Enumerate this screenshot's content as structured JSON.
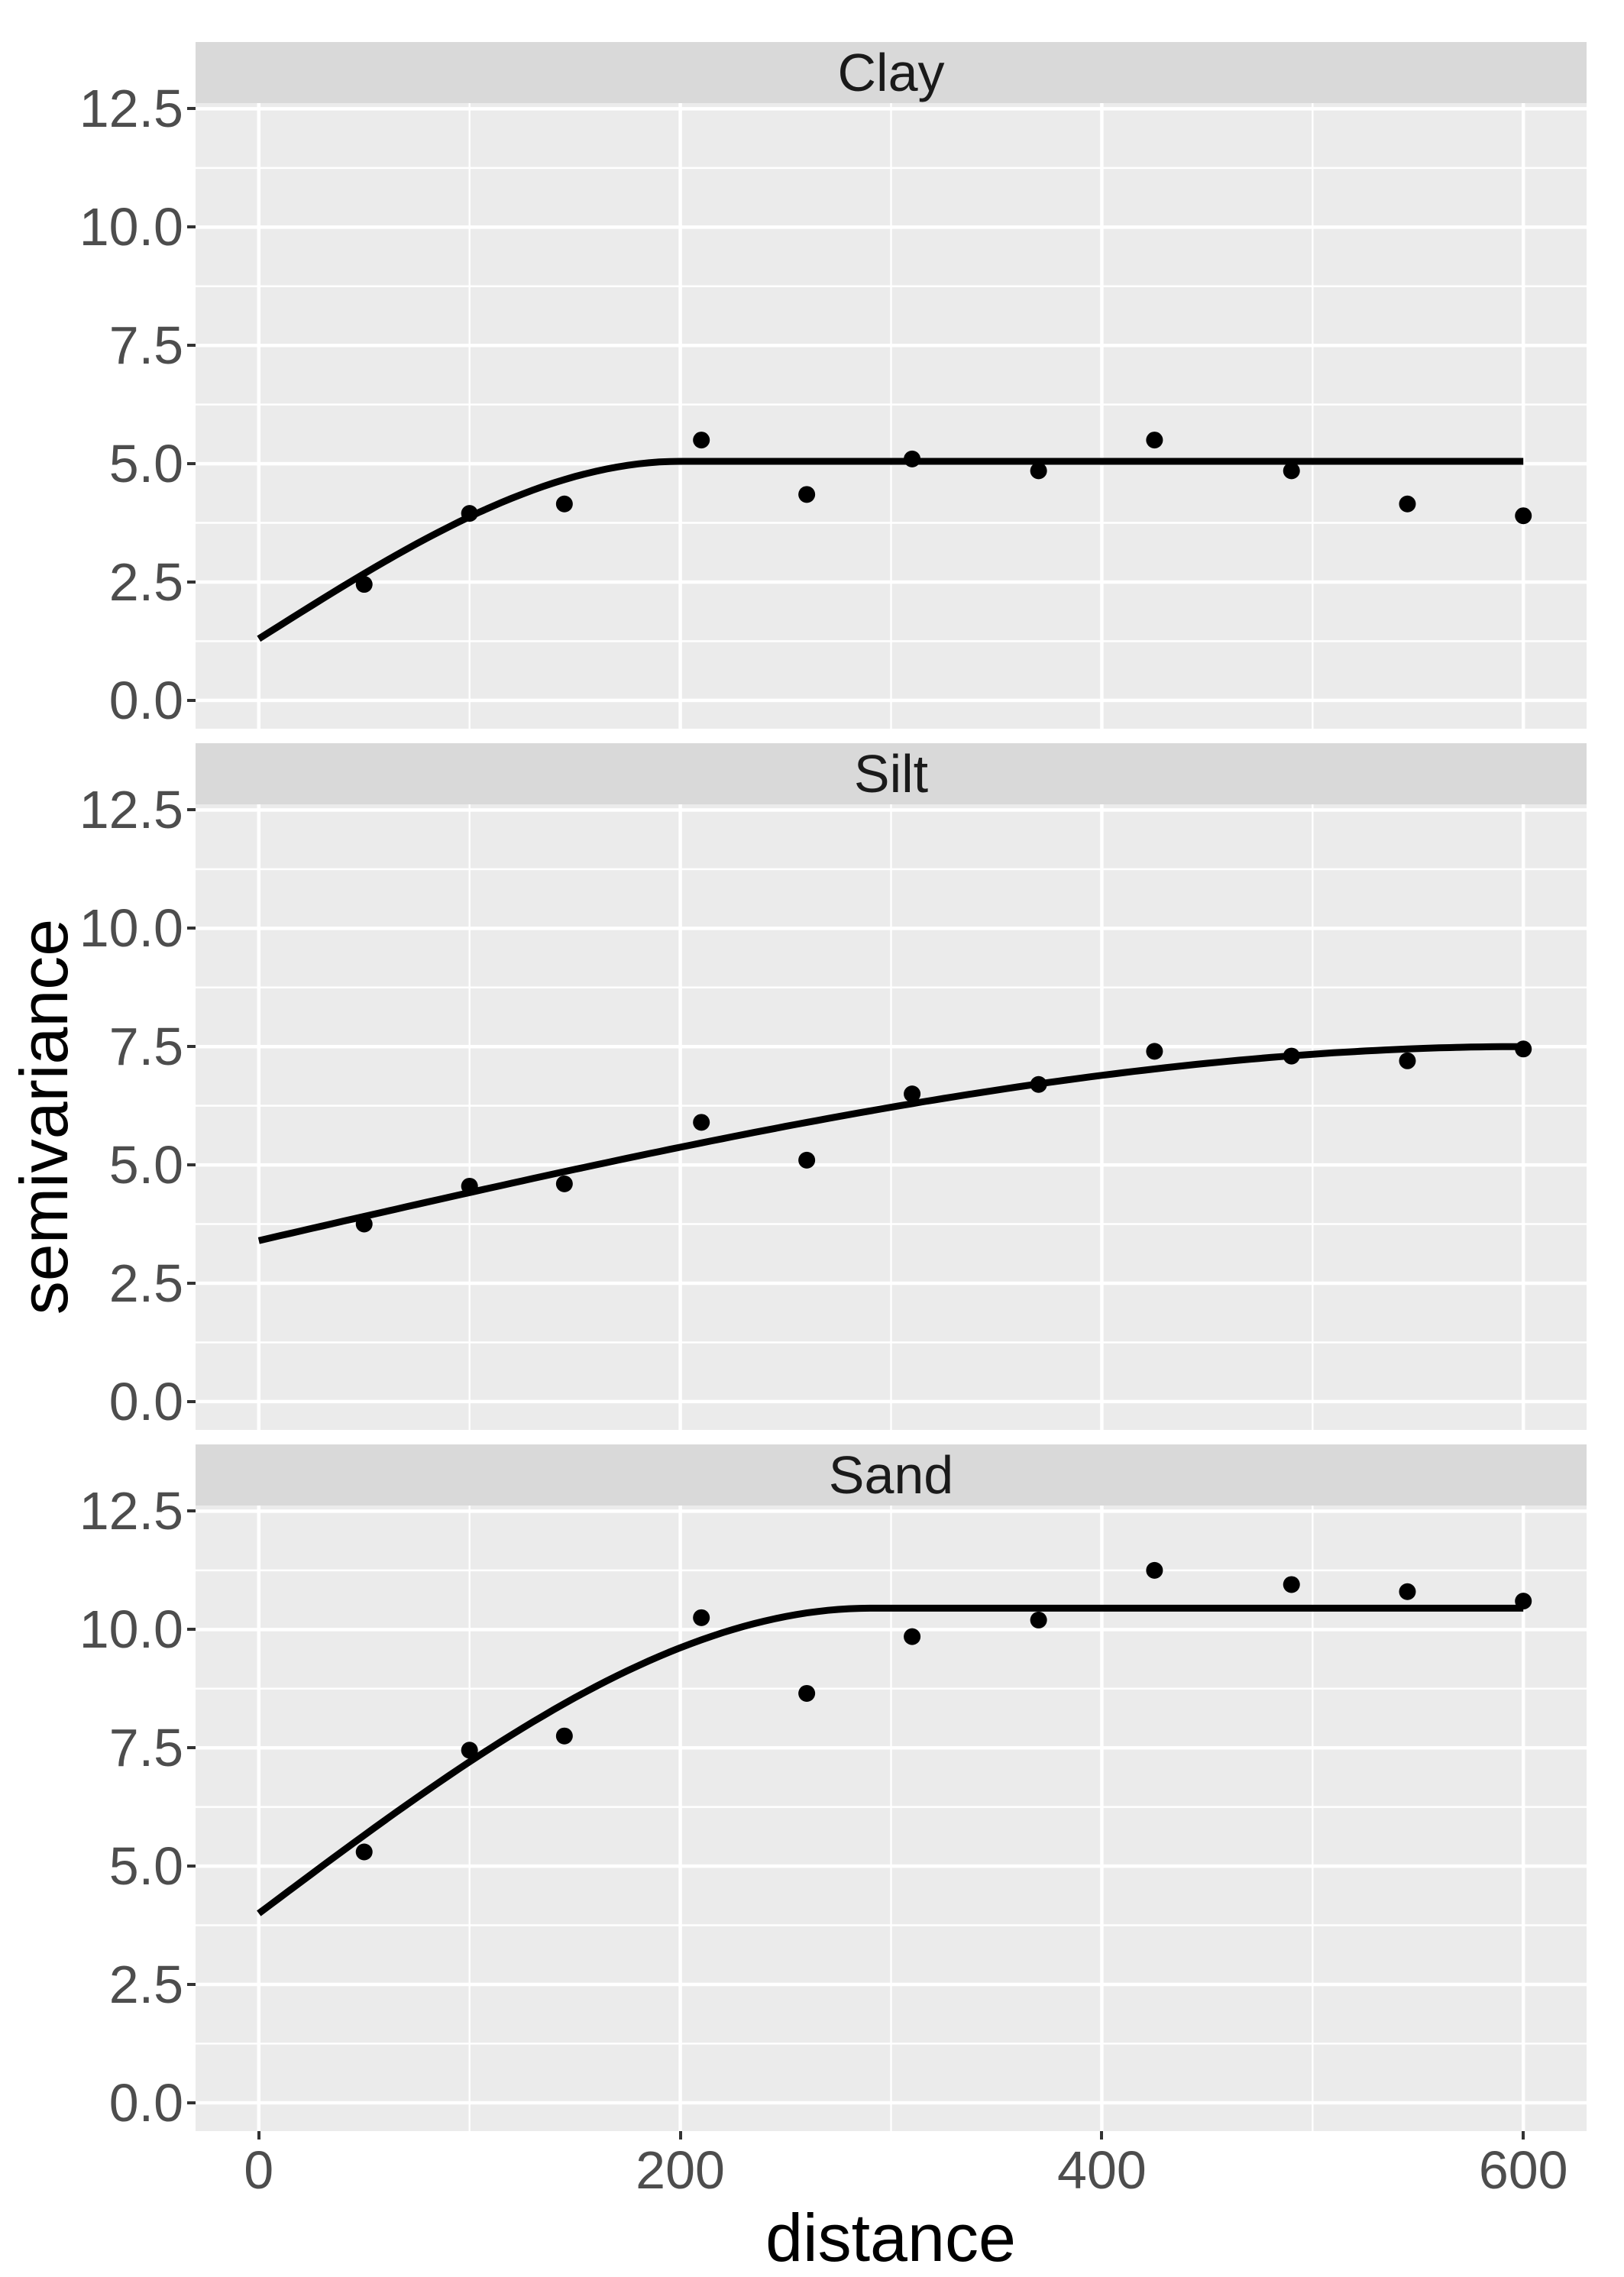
{
  "figure": {
    "x_axis_title": "distance",
    "y_axis_title": "semivariance"
  },
  "chart_data": {
    "type": "scatter",
    "title": "",
    "xlabel": "distance",
    "ylabel": "semivariance",
    "facet_labels": [
      "Clay",
      "Silt",
      "Sand"
    ],
    "x": {
      "ticks": [
        0,
        200,
        400,
        600
      ],
      "tick_labels": [
        "0",
        "200",
        "400",
        "600"
      ],
      "minor_ticks": [
        100,
        300,
        500
      ],
      "lim": [
        -30,
        630
      ]
    },
    "y": {
      "ticks": [
        0,
        2.5,
        5,
        7.5,
        10,
        12.5
      ],
      "tick_labels": [
        "0.0",
        "2.5",
        "5.0",
        "7.5",
        "10.0",
        "12.5"
      ],
      "minor_ticks": [
        1.25,
        3.75,
        6.25,
        8.75,
        11.25
      ],
      "lim": [
        -0.6,
        12.62
      ]
    },
    "grid": true,
    "legend": "none",
    "facets": [
      {
        "label": "Clay",
        "points": [
          [
            50,
            2.45
          ],
          [
            100,
            3.95
          ],
          [
            145,
            4.15
          ],
          [
            210,
            5.5
          ],
          [
            260,
            4.35
          ],
          [
            310,
            5.1
          ],
          [
            370,
            4.85
          ],
          [
            425,
            5.5
          ],
          [
            490,
            4.85
          ],
          [
            545,
            4.15
          ],
          [
            600,
            3.9
          ]
        ],
        "model": {
          "type": "spherical",
          "nugget": 1.3,
          "psill": 3.75,
          "range": 200,
          "sill": 5.05
        }
      },
      {
        "label": "Silt",
        "points": [
          [
            50,
            3.75
          ],
          [
            100,
            4.55
          ],
          [
            145,
            4.6
          ],
          [
            210,
            5.9
          ],
          [
            260,
            5.1
          ],
          [
            310,
            6.5
          ],
          [
            370,
            6.7
          ],
          [
            425,
            7.4
          ],
          [
            490,
            7.3
          ],
          [
            545,
            7.2
          ],
          [
            600,
            7.45
          ]
        ],
        "model": {
          "type": "spherical",
          "nugget": 3.4,
          "psill": 4.1,
          "range": 600,
          "sill": 7.5
        }
      },
      {
        "label": "Sand",
        "points": [
          [
            50,
            5.3
          ],
          [
            100,
            7.45
          ],
          [
            145,
            7.75
          ],
          [
            210,
            10.25
          ],
          [
            260,
            8.65
          ],
          [
            310,
            9.85
          ],
          [
            370,
            10.2
          ],
          [
            425,
            11.25
          ],
          [
            490,
            10.95
          ],
          [
            545,
            10.8
          ],
          [
            600,
            10.6
          ]
        ],
        "model": {
          "type": "spherical",
          "nugget": 4.0,
          "psill": 6.45,
          "range": 290,
          "sill": 10.45
        }
      }
    ],
    "style": {
      "panel_bg": "#EBEBEB",
      "strip_bg": "#D9D9D9",
      "grid_major_color": "#FFFFFF",
      "grid_minor_color": "#FFFFFF",
      "point_color": "#000000",
      "line_color": "#000000",
      "tick_label_color": "#4D4D4D",
      "tick_mark_color": "#333333",
      "strip_text_color": "#1A1A1A",
      "axis_title_color": "#000000"
    }
  }
}
